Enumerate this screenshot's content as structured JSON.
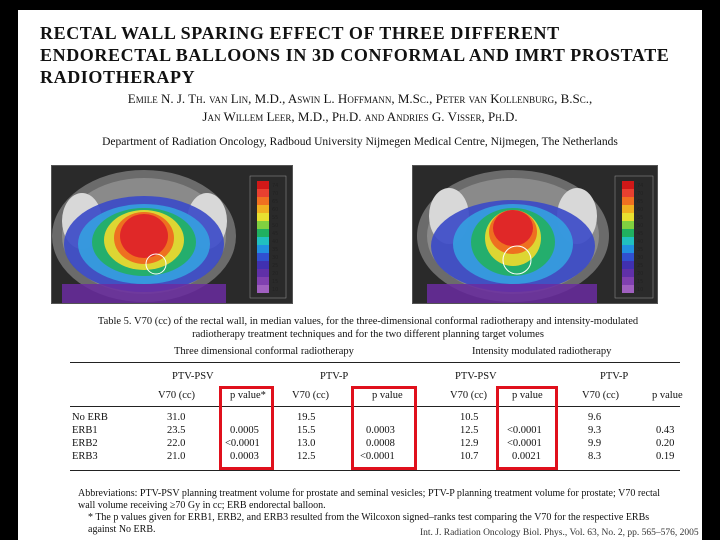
{
  "title": "Rectal Wall Sparing Effect of Three Different Endorectal Balloons in 3D Conformal and IMRT Prostate Radiotherapy",
  "authors_line1": "Emile N. J. Th. van Lin, M.D., Aswin L. Hoffmann, M.Sc., Peter van Kollenburg, B.Sc.,",
  "authors_line2": "Jan Willem Leer, M.D., Ph.D. and Andries G. Visser, Ph.D.",
  "department": "Department of Radiation Oncology, Radboud University Nijmegen Medical Centre, Nijmegen, The Netherlands",
  "colorbar_labels": [
    "74",
    "70",
    "65",
    "60",
    "55",
    "50",
    "45",
    "40",
    "35",
    "30",
    "25",
    "20",
    "15",
    "10"
  ],
  "caption": "Table 5. V70 (cc) of the rectal wall, in median values, for the three-dimensional conformal radiotherapy and intensity-modulated radiotherapy treatment techniques and for the two different planning target volumes",
  "table": {
    "group_left": "Three dimensional conformal radiotherapy",
    "group_right": "Intensity modulated radiotherapy",
    "ptv_labels": [
      "PTV-PSV",
      "PTV-P",
      "PTV-PSV",
      "PTV-P"
    ],
    "col_headers": [
      "V70 (cc)",
      "p value*",
      "V70 (cc)",
      "p value",
      "V70 (cc)",
      "p value",
      "V70 (cc)",
      "p value"
    ],
    "rows": [
      {
        "label": "No ERB",
        "cells": [
          "31.0",
          "",
          "19.5",
          "",
          "10.5",
          "",
          "9.6",
          ""
        ]
      },
      {
        "label": "ERB1",
        "cells": [
          "23.5",
          "0.0005",
          "15.5",
          "0.0003",
          "12.5",
          "<0.0001",
          "9.3",
          "0.43"
        ]
      },
      {
        "label": "ERB2",
        "cells": [
          "22.0",
          "<0.0001",
          "13.0",
          "0.0008",
          "12.9",
          "<0.0001",
          "9.9",
          "0.20"
        ]
      },
      {
        "label": "ERB3",
        "cells": [
          "21.0",
          "0.0003",
          "12.5",
          "<0.0001",
          "10.7",
          "0.0021",
          "8.3",
          "0.19"
        ]
      }
    ]
  },
  "abbreviations": "Abbreviations: PTV-PSV    planning treatment volume for prostate and seminal vesicles; PTV-P    planning treatment volume for prostate; V70    rectal wall volume receiving ≥70 Gy in cc; ERB    endorectal balloon.",
  "footnote": "* The p values given for ERB1, ERB2, and ERB3 resulted from the Wilcoxon signed–ranks test comparing the V70 for the respective ERBs against No ERB.",
  "journal_ref": "Int. J. Radiation Oncology Biol. Phys., Vol. 63, No. 2, pp. 565–576, 2005",
  "colors": {
    "highlight": "#e0101c"
  }
}
